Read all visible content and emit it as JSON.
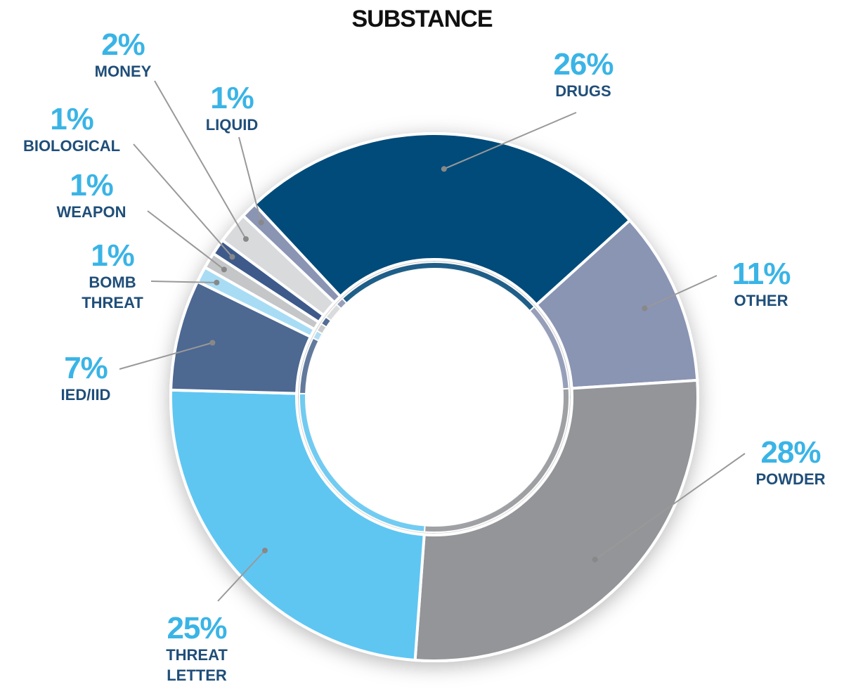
{
  "chart_data": {
    "type": "donut",
    "title": "SUBSTANCE",
    "categories": [
      "DRUGS",
      "OTHER",
      "POWDER",
      "THREAT LETTER",
      "IED/IID",
      "BOMB THREAT",
      "WEAPON",
      "BIOLOGICAL",
      "MONEY",
      "LIQUID"
    ],
    "values": [
      26,
      11,
      28,
      25,
      7,
      1,
      1,
      1,
      2,
      1
    ],
    "value_labels": [
      "26%",
      "11%",
      "28%",
      "25%",
      "7%",
      "1%",
      "1%",
      "1%",
      "2%",
      "1%"
    ],
    "colors": [
      "#004c7a",
      "#8a94b3",
      "#939598",
      "#5ec6f2",
      "#4d6891",
      "#a8dcf5",
      "#c4c6c8",
      "#3d5a8a",
      "#d8dadc",
      "#8a94b3"
    ]
  }
}
